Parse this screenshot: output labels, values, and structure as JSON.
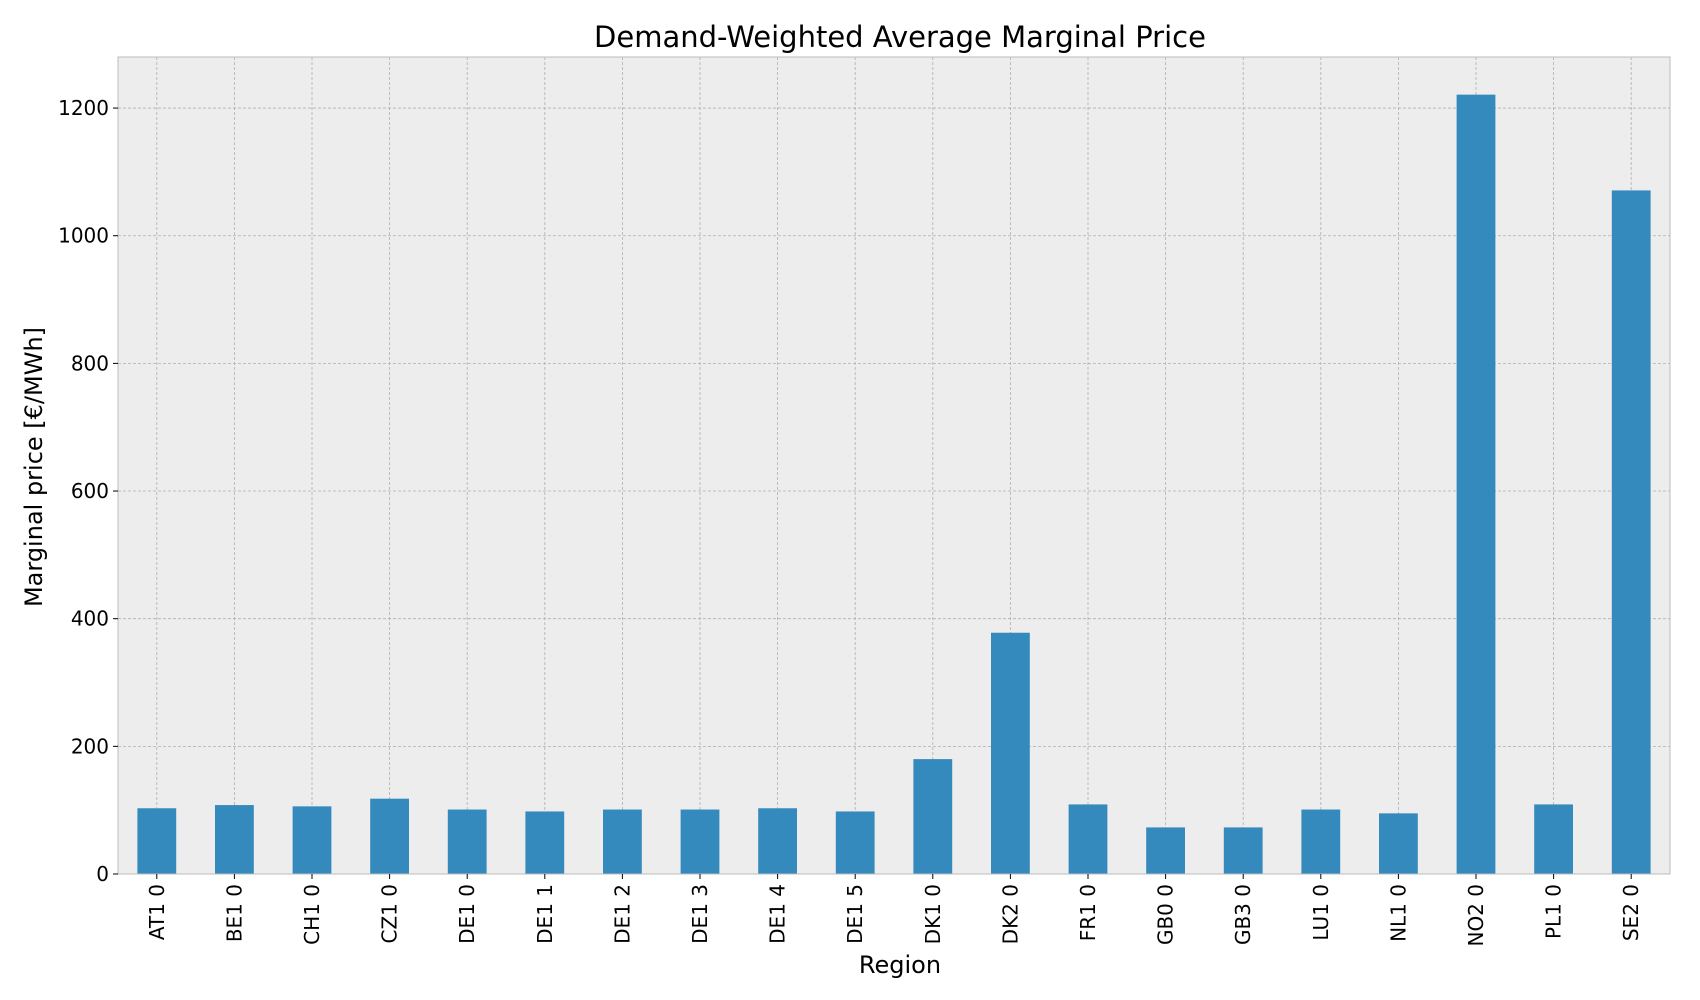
{
  "chart_data": {
    "type": "bar",
    "title": "Demand-Weighted Average Marginal Price",
    "xlabel": "Region",
    "ylabel": "Marginal price [€/MWh]",
    "categories": [
      "AT1 0",
      "BE1 0",
      "CH1 0",
      "CZ1 0",
      "DE1 0",
      "DE1 1",
      "DE1 2",
      "DE1 3",
      "DE1 4",
      "DE1 5",
      "DK1 0",
      "DK2 0",
      "FR1 0",
      "GB0 0",
      "GB3 0",
      "LU1 0",
      "NL1 0",
      "NO2 0",
      "PL1 0",
      "SE2 0"
    ],
    "values": [
      103,
      108,
      106,
      118,
      101,
      98,
      101,
      101,
      103,
      98,
      180,
      378,
      109,
      73,
      73,
      101,
      95,
      1221,
      109,
      1071
    ],
    "ylim": [
      0,
      1280
    ],
    "yticks": [
      0,
      200,
      400,
      600,
      800,
      1000,
      1200
    ],
    "grid": true,
    "legend": "none",
    "bar_color": "#348abd",
    "background_color": "#ededed"
  }
}
